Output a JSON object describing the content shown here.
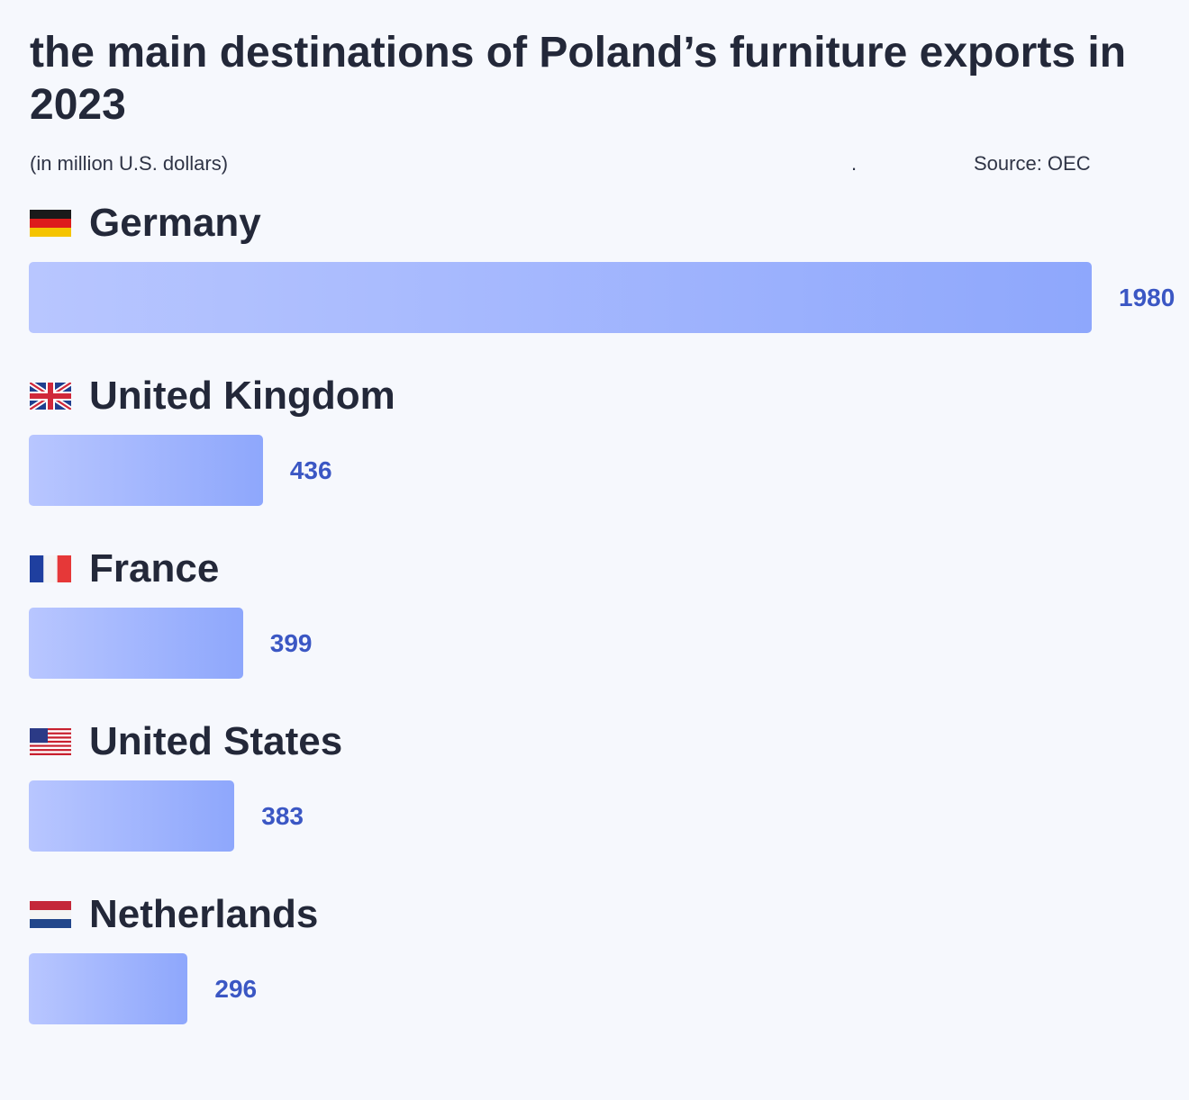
{
  "title": "the main destinations of Poland’s furniture exports in 2023",
  "subtitle": "(in million U.S. dollars)",
  "separator": ".",
  "source": "Source: OEC",
  "colors": {
    "bar_start": "#b8c6ff",
    "bar_end": "#8ea7fc",
    "value_text": "#3b57c4",
    "text": "#232839",
    "background": "#f6f8fd"
  },
  "chart_data": {
    "type": "bar",
    "orientation": "horizontal",
    "categories": [
      "Germany",
      "United Kingdom",
      "France",
      "United States",
      "Netherlands"
    ],
    "flags": [
      "germany-flag-icon",
      "uk-flag-icon",
      "france-flag-icon",
      "usa-flag-icon",
      "netherlands-flag-icon"
    ],
    "values": [
      1980,
      436,
      399,
      383,
      296
    ],
    "value_labels": [
      "1980",
      "436",
      "399",
      "383",
      "296"
    ],
    "xlim": [
      0,
      1980
    ],
    "grid": false,
    "legend": "none"
  }
}
